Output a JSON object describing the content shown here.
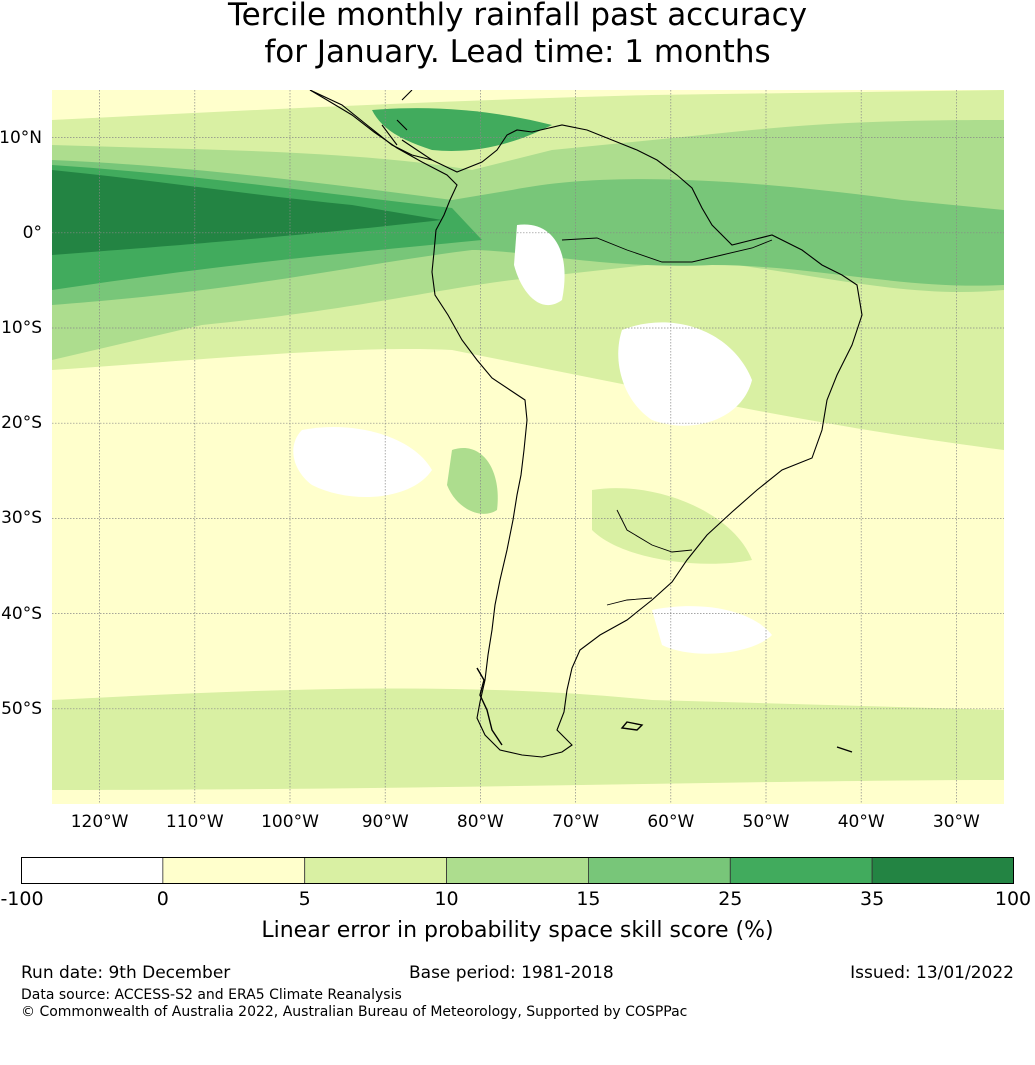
{
  "title_line1": "Tercile monthly rainfall past accuracy",
  "title_line2": "for January. Lead time: 1 months",
  "map": {
    "lat_labels": [
      {
        "text": "10°N",
        "value": 10
      },
      {
        "text": "0°",
        "value": 0
      },
      {
        "text": "10°S",
        "value": -10
      },
      {
        "text": "20°S",
        "value": -20
      },
      {
        "text": "30°S",
        "value": -30
      },
      {
        "text": "40°S",
        "value": -40
      },
      {
        "text": "50°S",
        "value": -50
      }
    ],
    "lon_labels": [
      {
        "text": "120°W",
        "value": -120
      },
      {
        "text": "110°W",
        "value": -110
      },
      {
        "text": "100°W",
        "value": -100
      },
      {
        "text": "90°W",
        "value": -90
      },
      {
        "text": "80°W",
        "value": -80
      },
      {
        "text": "70°W",
        "value": -70
      },
      {
        "text": "60°W",
        "value": -60
      },
      {
        "text": "50°W",
        "value": -50
      },
      {
        "text": "40°W",
        "value": -40
      },
      {
        "text": "30°W",
        "value": -30
      }
    ],
    "lon_range": [
      -125,
      -25
    ],
    "lat_range": [
      -60,
      15
    ],
    "grid": true
  },
  "colorbar": {
    "label": "Linear error in probability space skill score (%)",
    "ticks": [
      "-100",
      "0",
      "5",
      "10",
      "15",
      "25",
      "35",
      "100"
    ],
    "colors": [
      "#ffffff",
      "#ffffcc",
      "#d9f0a3",
      "#addd8e",
      "#78c679",
      "#41ab5d",
      "#238443"
    ]
  },
  "footer": {
    "run_date": "Run date: 9th December",
    "base_period": "Base period: 1981-2018",
    "issued": "Issued: 13/01/2022",
    "data_source": "Data source: ACCESS-S2 and ERA5 Climate Reanalysis",
    "copyright": "© Commonwealth of Australia 2022, Australian Bureau of Meteorology, Supported by COSPPac"
  }
}
